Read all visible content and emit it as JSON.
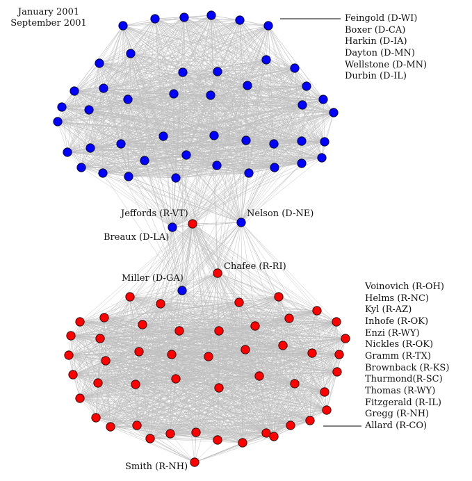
{
  "periods": [
    "January 2001",
    "September 2001"
  ],
  "colors": {
    "democrat": "#0000ff",
    "republican": "#ff0000",
    "edge": "#c0c0c0",
    "node_stroke": "#000000",
    "text": "#111111"
  },
  "labels": {
    "jeffords": "Jeffords (R-VT)",
    "nelson": "Nelson (D-NE)",
    "breaux": "Breaux (D-LA)",
    "chafee": "Chafee (R-RI)",
    "miller": "Miller (D-GA)",
    "smith": "Smith (R-NH)"
  },
  "democrat_list": [
    "Feingold (D-WI)",
    "Boxer (D-CA)",
    "Harkin (D-IA)",
    "Dayton (D-MN)",
    "Wellstone (D-MN)",
    "Durbin (D-IL)"
  ],
  "republican_list": [
    "Voinovich (R-OH)",
    "Helms (R-NC)",
    "Kyl (R-AZ)",
    "Inhofe (R-OK)",
    "Enzi (R-WY)",
    "Nickles (R-OK)",
    "Gramm (R-TX)",
    "Brownback (R-KS)",
    "Thurmond(R-SC)",
    "Thomas (R-WY)",
    "Fitzgerald (R-IL)",
    "Gregg (R-NH)",
    "Allard (R-CO)"
  ]
}
